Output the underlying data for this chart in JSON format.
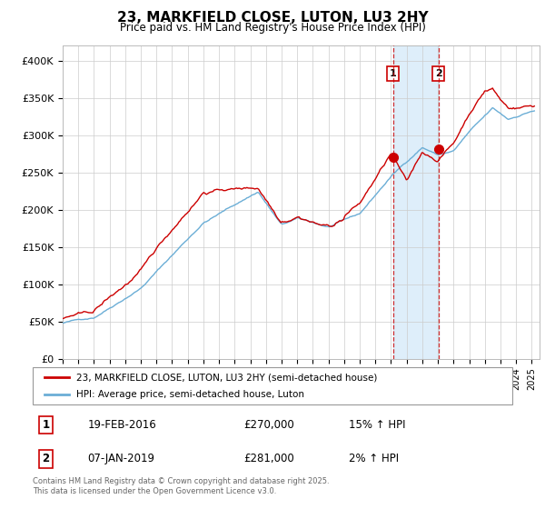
{
  "title": "23, MARKFIELD CLOSE, LUTON, LU3 2HY",
  "subtitle": "Price paid vs. HM Land Registry's House Price Index (HPI)",
  "ylabel_ticks": [
    "£0",
    "£50K",
    "£100K",
    "£150K",
    "£200K",
    "£250K",
    "£300K",
    "£350K",
    "£400K"
  ],
  "ytick_values": [
    0,
    50000,
    100000,
    150000,
    200000,
    250000,
    300000,
    350000,
    400000
  ],
  "ylim": [
    0,
    420000
  ],
  "xlim_start": 1995.0,
  "xlim_end": 2025.5,
  "price_color": "#cc0000",
  "vline1_x": 2016.12,
  "vline2_x": 2019.03,
  "marker1_y": 270000,
  "marker2_y": 281000,
  "legend_label1": "23, MARKFIELD CLOSE, LUTON, LU3 2HY (semi-detached house)",
  "legend_label2": "HPI: Average price, semi-detached house, Luton",
  "table_row1": [
    "1",
    "19-FEB-2016",
    "£270,000",
    "15% ↑ HPI"
  ],
  "table_row2": [
    "2",
    "07-JAN-2019",
    "£281,000",
    "2% ↑ HPI"
  ],
  "footnote": "Contains HM Land Registry data © Crown copyright and database right 2025.\nThis data is licensed under the Open Government Licence v3.0.",
  "shaded_start": 2016.12,
  "shaded_end": 2019.03,
  "hpi_line_color": "#6baed6",
  "shade_color": "#d0e8f8"
}
